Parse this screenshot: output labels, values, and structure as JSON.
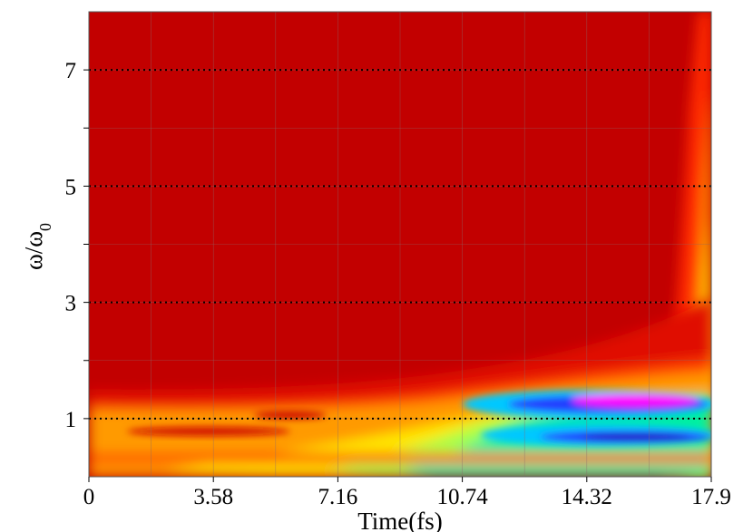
{
  "chart_data": {
    "type": "heatmap",
    "title": "",
    "xlabel": "Time(fs)",
    "ylabel": "ω/ω₀",
    "xlim": [
      0,
      17.9
    ],
    "ylim": [
      0,
      8
    ],
    "x_ticks": [
      "0",
      "3.58",
      "7.16",
      "10.74",
      "14.32",
      "17.9"
    ],
    "x_tick_values": [
      0,
      3.58,
      7.16,
      10.74,
      14.32,
      17.9
    ],
    "y_ticks": [
      "1",
      "3",
      "5",
      "7"
    ],
    "y_tick_values": [
      1,
      3,
      5,
      7
    ],
    "reference_lines": [
      1,
      3,
      5,
      7
    ],
    "reference_line_style": "dotted",
    "colormap": [
      "#c00000",
      "#ff2000",
      "#ff8000",
      "#ffe000",
      "#b0ff40",
      "#00f0a0",
      "#00c8ff",
      "#2040ff",
      "#2000b0",
      "#ff00ff"
    ],
    "grid": true,
    "description_regions": [
      {
        "t": [
          0,
          17.9
        ],
        "w": [
          2,
          8
        ],
        "level": "low"
      },
      {
        "t": [
          8,
          17.9
        ],
        "w": [
          0.6,
          1.5
        ],
        "level": "high"
      },
      {
        "t": [
          14,
          17.9
        ],
        "w": [
          1.2,
          1.5
        ],
        "level": "max"
      }
    ]
  }
}
